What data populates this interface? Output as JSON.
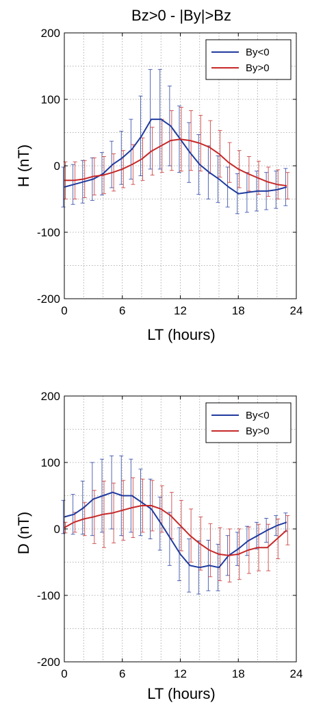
{
  "chart_data": [
    {
      "type": "line",
      "title": "Bz>0 - |By|>Bz",
      "xlabel": "LT (hours)",
      "ylabel": "H (nT)",
      "xlim": [
        0,
        24
      ],
      "ylim": [
        -200,
        200
      ],
      "xticks": [
        "0",
        "6",
        "12",
        "18",
        "24"
      ],
      "yticks": [
        "-200",
        "-100",
        "0",
        "100",
        "200"
      ],
      "grid": true,
      "legend_position": "top-right",
      "x": [
        0,
        1,
        2,
        3,
        4,
        5,
        6,
        7,
        8,
        9,
        10,
        11,
        12,
        13,
        14,
        15,
        16,
        17,
        18,
        19,
        20,
        21,
        22,
        23
      ],
      "series": [
        {
          "name": "By<0",
          "color": "#1f3a9e",
          "values": [
            -32,
            -28,
            -24,
            -20,
            -12,
            2,
            12,
            25,
            45,
            70,
            70,
            60,
            40,
            20,
            2,
            -10,
            -20,
            -32,
            -42,
            -40,
            -38,
            -38,
            -36,
            -32
          ],
          "errors": [
            30,
            30,
            32,
            32,
            32,
            35,
            40,
            45,
            60,
            75,
            75,
            60,
            50,
            45,
            45,
            40,
            35,
            30,
            30,
            30,
            30,
            28,
            28,
            28
          ]
        },
        {
          "name": "By>0",
          "color": "#c62828",
          "values": [
            -22,
            -22,
            -20,
            -16,
            -14,
            -10,
            -5,
            2,
            10,
            22,
            30,
            38,
            40,
            38,
            34,
            28,
            18,
            5,
            -5,
            -12,
            -18,
            -24,
            -28,
            -30
          ],
          "errors": [
            28,
            28,
            28,
            28,
            28,
            28,
            28,
            30,
            32,
            36,
            40,
            45,
            48,
            45,
            42,
            40,
            35,
            30,
            28,
            26,
            25,
            22,
            22,
            20
          ]
        }
      ]
    },
    {
      "type": "line",
      "title": "",
      "xlabel": "LT (hours)",
      "ylabel": "D (nT)",
      "xlim": [
        0,
        24
      ],
      "ylim": [
        -200,
        200
      ],
      "xticks": [
        "0",
        "6",
        "12",
        "18",
        "24"
      ],
      "yticks": [
        "-200",
        "-100",
        "0",
        "100",
        "200"
      ],
      "grid": true,
      "legend_position": "top-right",
      "x": [
        0,
        1,
        2,
        3,
        4,
        5,
        6,
        7,
        8,
        9,
        10,
        11,
        12,
        13,
        14,
        15,
        16,
        17,
        18,
        19,
        20,
        21,
        22,
        23
      ],
      "series": [
        {
          "name": "By<0",
          "color": "#1f3a9e",
          "values": [
            18,
            22,
            32,
            45,
            50,
            55,
            50,
            50,
            40,
            30,
            8,
            -15,
            -38,
            -55,
            -58,
            -55,
            -58,
            -40,
            -30,
            -18,
            -10,
            -2,
            5,
            10
          ],
          "errors": [
            25,
            30,
            40,
            55,
            55,
            55,
            60,
            55,
            50,
            45,
            40,
            40,
            40,
            40,
            40,
            38,
            35,
            30,
            25,
            22,
            20,
            18,
            15,
            14
          ]
        },
        {
          "name": "By>0",
          "color": "#c62828",
          "values": [
            2,
            10,
            15,
            18,
            22,
            24,
            28,
            32,
            35,
            35,
            30,
            20,
            5,
            -10,
            -22,
            -32,
            -38,
            -40,
            -38,
            -32,
            -28,
            -28,
            -15,
            -2
          ],
          "errors": [
            8,
            15,
            25,
            40,
            50,
            45,
            45,
            45,
            40,
            38,
            35,
            35,
            38,
            40,
            40,
            40,
            40,
            40,
            38,
            35,
            35,
            35,
            30,
            22
          ]
        }
      ]
    }
  ]
}
